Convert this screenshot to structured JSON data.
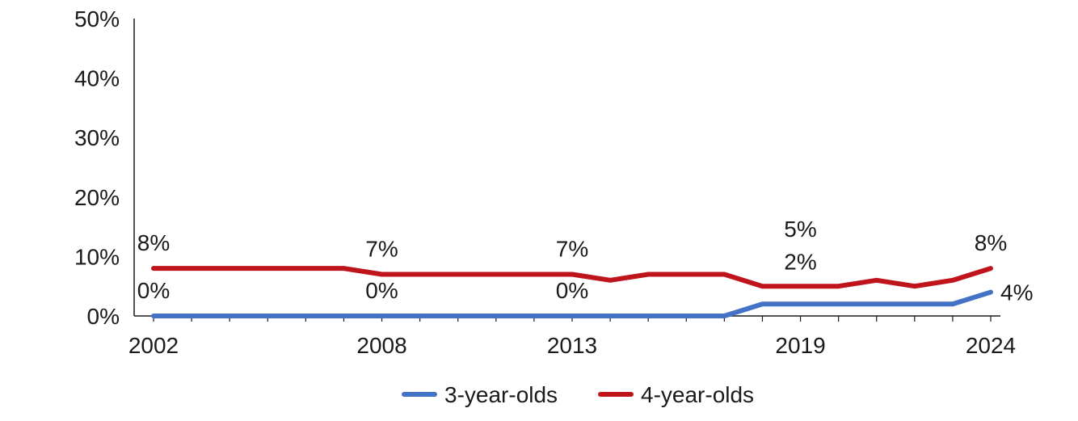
{
  "chart_data": {
    "type": "line",
    "x": [
      2002,
      2003,
      2004,
      2005,
      2006,
      2007,
      2008,
      2009,
      2010,
      2011,
      2012,
      2013,
      2014,
      2015,
      2016,
      2017,
      2018,
      2019,
      2020,
      2021,
      2022,
      2023,
      2024
    ],
    "x_tick_labels": [
      "2002",
      "2008",
      "2013",
      "2019",
      "2024"
    ],
    "y_tick_labels": [
      "0%",
      "10%",
      "20%",
      "30%",
      "40%",
      "50%"
    ],
    "ylim": [
      0,
      50
    ],
    "y_unit": "%",
    "grid": false,
    "legend_position": "bottom",
    "series": [
      {
        "name": "3-year-olds",
        "color": "#4472c4",
        "values": [
          0,
          0,
          0,
          0,
          0,
          0,
          0,
          0,
          0,
          0,
          0,
          0,
          0,
          0,
          0,
          0,
          2,
          2,
          2,
          2,
          2,
          2,
          4
        ],
        "data_labels": [
          {
            "x": 2002,
            "text": "0%"
          },
          {
            "x": 2008,
            "text": "0%"
          },
          {
            "x": 2013,
            "text": "0%"
          },
          {
            "x": 2019,
            "text": "2%"
          },
          {
            "x": 2024,
            "text": "4%"
          }
        ]
      },
      {
        "name": "4-year-olds",
        "color": "#c0141c",
        "values": [
          8,
          8,
          8,
          8,
          8,
          8,
          7,
          7,
          7,
          7,
          7,
          7,
          6,
          7,
          7,
          7,
          5,
          5,
          5,
          6,
          5,
          6,
          8
        ],
        "data_labels": [
          {
            "x": 2002,
            "text": "8%"
          },
          {
            "x": 2008,
            "text": "7%"
          },
          {
            "x": 2013,
            "text": "7%"
          },
          {
            "x": 2019,
            "text": "5%"
          },
          {
            "x": 2024,
            "text": "8%"
          }
        ]
      }
    ]
  }
}
